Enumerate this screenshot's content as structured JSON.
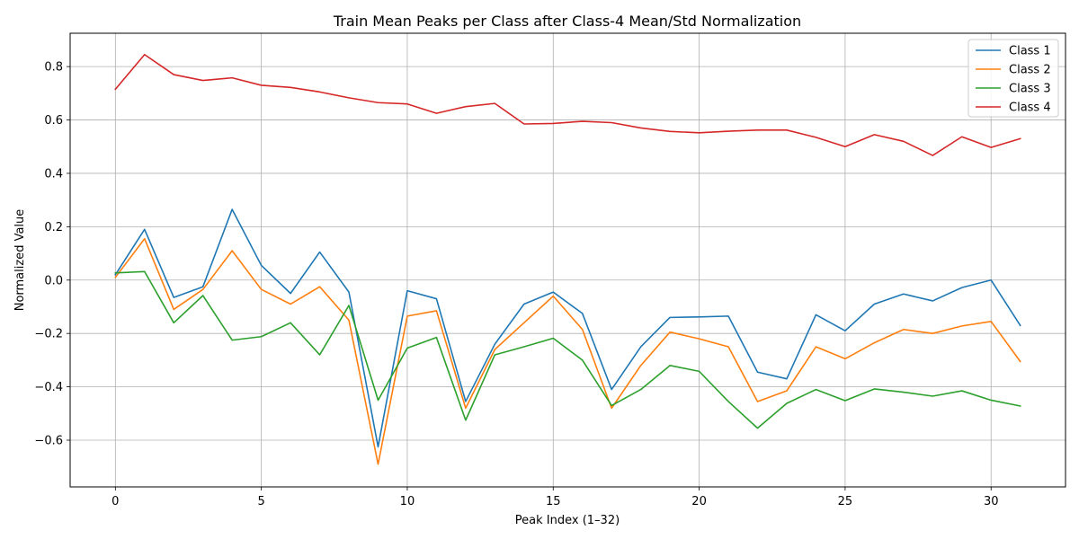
{
  "chart_data": {
    "type": "line",
    "title": "Train Mean Peaks per Class after Class-4 Mean/Std Normalization",
    "xlabel": "Peak Index (1–32)",
    "ylabel": "Normalized Value",
    "xlim": [
      -1.55,
      32.55
    ],
    "ylim": [
      -0.775,
      0.925
    ],
    "xticks": [
      0,
      5,
      10,
      15,
      20,
      25,
      30
    ],
    "yticks": [
      -0.6,
      -0.4,
      -0.2,
      0.0,
      0.2,
      0.4,
      0.6,
      0.8
    ],
    "ytick_labels": [
      "−0.6",
      "−0.4",
      "−0.2",
      "0.0",
      "0.2",
      "0.4",
      "0.6",
      "0.8"
    ],
    "grid": true,
    "legend_position": "top-right",
    "x": [
      0,
      1,
      2,
      3,
      4,
      5,
      6,
      7,
      8,
      9,
      10,
      11,
      12,
      13,
      14,
      15,
      16,
      17,
      18,
      19,
      20,
      21,
      22,
      23,
      24,
      25,
      26,
      27,
      28,
      29,
      30,
      31
    ],
    "series": [
      {
        "name": "Class 1",
        "color": "#1f77b4",
        "values": [
          0.02,
          0.19,
          -0.065,
          -0.025,
          0.265,
          0.055,
          -0.05,
          0.105,
          -0.045,
          -0.625,
          -0.04,
          -0.07,
          -0.455,
          -0.24,
          -0.09,
          -0.045,
          -0.125,
          -0.41,
          -0.25,
          -0.14,
          -0.138,
          -0.135,
          -0.345,
          -0.37,
          -0.13,
          -0.19,
          -0.09,
          -0.052,
          -0.078,
          -0.028,
          0.0,
          -0.17
        ]
      },
      {
        "name": "Class 2",
        "color": "#ff7f0e",
        "values": [
          0.01,
          0.155,
          -0.11,
          -0.035,
          0.11,
          -0.035,
          -0.09,
          -0.025,
          -0.15,
          -0.69,
          -0.135,
          -0.115,
          -0.48,
          -0.26,
          -0.16,
          -0.06,
          -0.185,
          -0.48,
          -0.32,
          -0.195,
          -0.22,
          -0.25,
          -0.455,
          -0.415,
          -0.25,
          -0.295,
          -0.235,
          -0.185,
          -0.2,
          -0.172,
          -0.155,
          -0.305
        ]
      },
      {
        "name": "Class 3",
        "color": "#2ca02c",
        "values": [
          0.027,
          0.032,
          -0.16,
          -0.058,
          -0.225,
          -0.212,
          -0.16,
          -0.28,
          -0.095,
          -0.45,
          -0.255,
          -0.215,
          -0.525,
          -0.28,
          -0.25,
          -0.218,
          -0.3,
          -0.47,
          -0.41,
          -0.32,
          -0.342,
          -0.455,
          -0.555,
          -0.462,
          -0.41,
          -0.452,
          -0.408,
          -0.42,
          -0.435,
          -0.415,
          -0.45,
          -0.472
        ]
      },
      {
        "name": "Class 4",
        "color": "#d62728",
        "values": [
          0.715,
          0.845,
          0.77,
          0.748,
          0.758,
          0.73,
          0.722,
          0.705,
          0.683,
          0.665,
          0.66,
          0.625,
          0.65,
          0.662,
          0.585,
          0.587,
          0.595,
          0.59,
          0.57,
          0.557,
          0.552,
          0.558,
          0.562,
          0.562,
          0.535,
          0.5,
          0.545,
          0.52,
          0.467,
          0.537,
          0.497,
          0.53
        ]
      }
    ]
  }
}
